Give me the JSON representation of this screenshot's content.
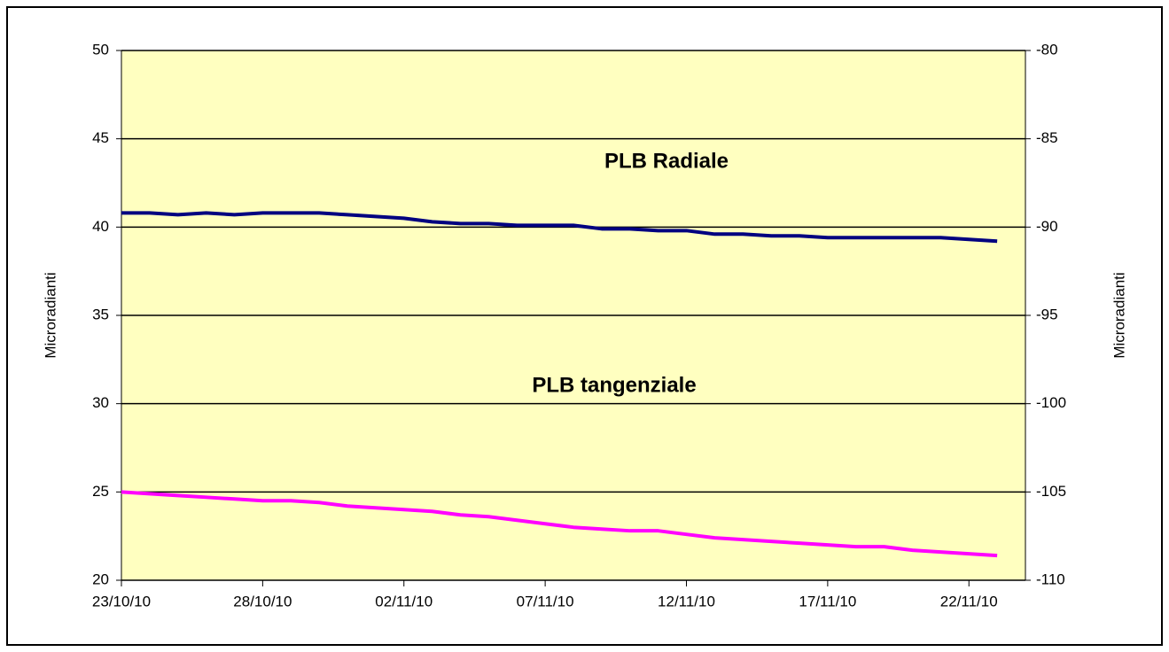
{
  "chart_data": {
    "type": "line",
    "y_label": "Microradianti",
    "y2_label": "Microradianti",
    "annotations": [
      "PLB Radiale",
      "PLB tangenziale"
    ],
    "x": [
      "23/10/10",
      "24/10/10",
      "25/10/10",
      "26/10/10",
      "27/10/10",
      "28/10/10",
      "29/10/10",
      "30/10/10",
      "31/10/10",
      "01/11/10",
      "02/11/10",
      "03/11/10",
      "04/11/10",
      "05/11/10",
      "06/11/10",
      "07/11/10",
      "08/11/10",
      "09/11/10",
      "10/11/10",
      "11/11/10",
      "12/11/10",
      "13/11/10",
      "14/11/10",
      "15/11/10",
      "16/11/10",
      "17/11/10",
      "18/11/10",
      "19/11/10",
      "20/11/10",
      "21/11/10",
      "22/11/10",
      "23/11/10"
    ],
    "series": [
      {
        "name": "PLB Radiale",
        "color": "#000080",
        "axis": "y",
        "values": [
          40.8,
          40.8,
          40.7,
          40.8,
          40.7,
          40.8,
          40.8,
          40.8,
          40.7,
          40.6,
          40.5,
          40.3,
          40.2,
          40.2,
          40.1,
          40.1,
          40.1,
          39.9,
          39.9,
          39.8,
          39.8,
          39.6,
          39.6,
          39.5,
          39.5,
          39.4,
          39.4,
          39.4,
          39.4,
          39.4,
          39.3,
          39.2
        ]
      },
      {
        "name": "PLB tangenziale",
        "color": "#ff00ff",
        "axis": "y2",
        "values": [
          -105.0,
          -105.1,
          -105.2,
          -105.3,
          -105.4,
          -105.5,
          -105.5,
          -105.6,
          -105.8,
          -105.9,
          -106.0,
          -106.1,
          -106.3,
          -106.4,
          -106.6,
          -106.8,
          -107.0,
          -107.1,
          -107.2,
          -107.2,
          -107.4,
          -107.6,
          -107.7,
          -107.8,
          -107.9,
          -108.0,
          -108.1,
          -108.1,
          -108.3,
          -108.4,
          -108.5,
          -108.6
        ]
      }
    ],
    "xlim": [
      "23/10/10",
      "24/11/10"
    ],
    "xticks": [
      "23/10/10",
      "28/10/10",
      "02/11/10",
      "07/11/10",
      "12/11/10",
      "17/11/10",
      "22/11/10"
    ],
    "ylim": [
      20,
      50
    ],
    "yticks": [
      20,
      25,
      30,
      35,
      40,
      45,
      50
    ],
    "y2lim": [
      -110,
      -80
    ],
    "y2ticks": [
      -110,
      -105,
      -100,
      -95,
      -90,
      -85,
      -80
    ],
    "grid": true,
    "plot_background": "#ffffc0"
  }
}
